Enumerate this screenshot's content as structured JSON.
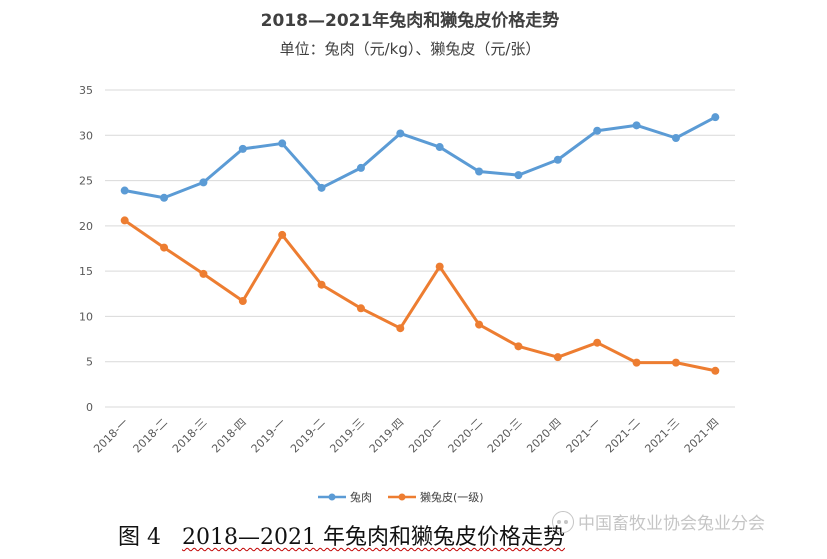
{
  "chart_data": {
    "type": "line",
    "title": "2018—2021年兔肉和獭兔皮价格走势",
    "subtitle": "单位：兔肉（元/kg）、獭兔皮（元/张）",
    "categories": [
      "2018-一",
      "2018-二",
      "2018-三",
      "2018-四",
      "2019-一",
      "2019-二",
      "2019-三",
      "2019-四",
      "2020-一",
      "2020-二",
      "2020-三",
      "2020-四",
      "2021-一",
      "2021-二",
      "2021-三",
      "2021-四"
    ],
    "series": [
      {
        "name": "兔肉",
        "color": "#5b9bd5",
        "values": [
          23.9,
          23.1,
          24.8,
          28.5,
          29.1,
          24.2,
          26.4,
          30.2,
          28.7,
          26.0,
          25.6,
          27.3,
          30.5,
          31.1,
          29.7,
          32.0
        ]
      },
      {
        "name": "獭兔皮(一级)",
        "color": "#ed7d31",
        "values": [
          20.6,
          17.6,
          14.7,
          11.7,
          19.0,
          13.5,
          10.9,
          8.7,
          15.5,
          9.1,
          6.7,
          5.5,
          7.1,
          4.9,
          4.9,
          4.0
        ]
      }
    ],
    "ylim": [
      0,
      35
    ],
    "yticks": [
      0,
      5,
      10,
      15,
      20,
      25,
      30,
      35
    ],
    "grid": true,
    "legend": "bottom-center"
  },
  "caption": {
    "prefix": "图 4",
    "text": "2018—2021 年兔肉和獭兔皮价格走势"
  },
  "watermark": {
    "text": "中国畜牧业协会兔业分会"
  }
}
